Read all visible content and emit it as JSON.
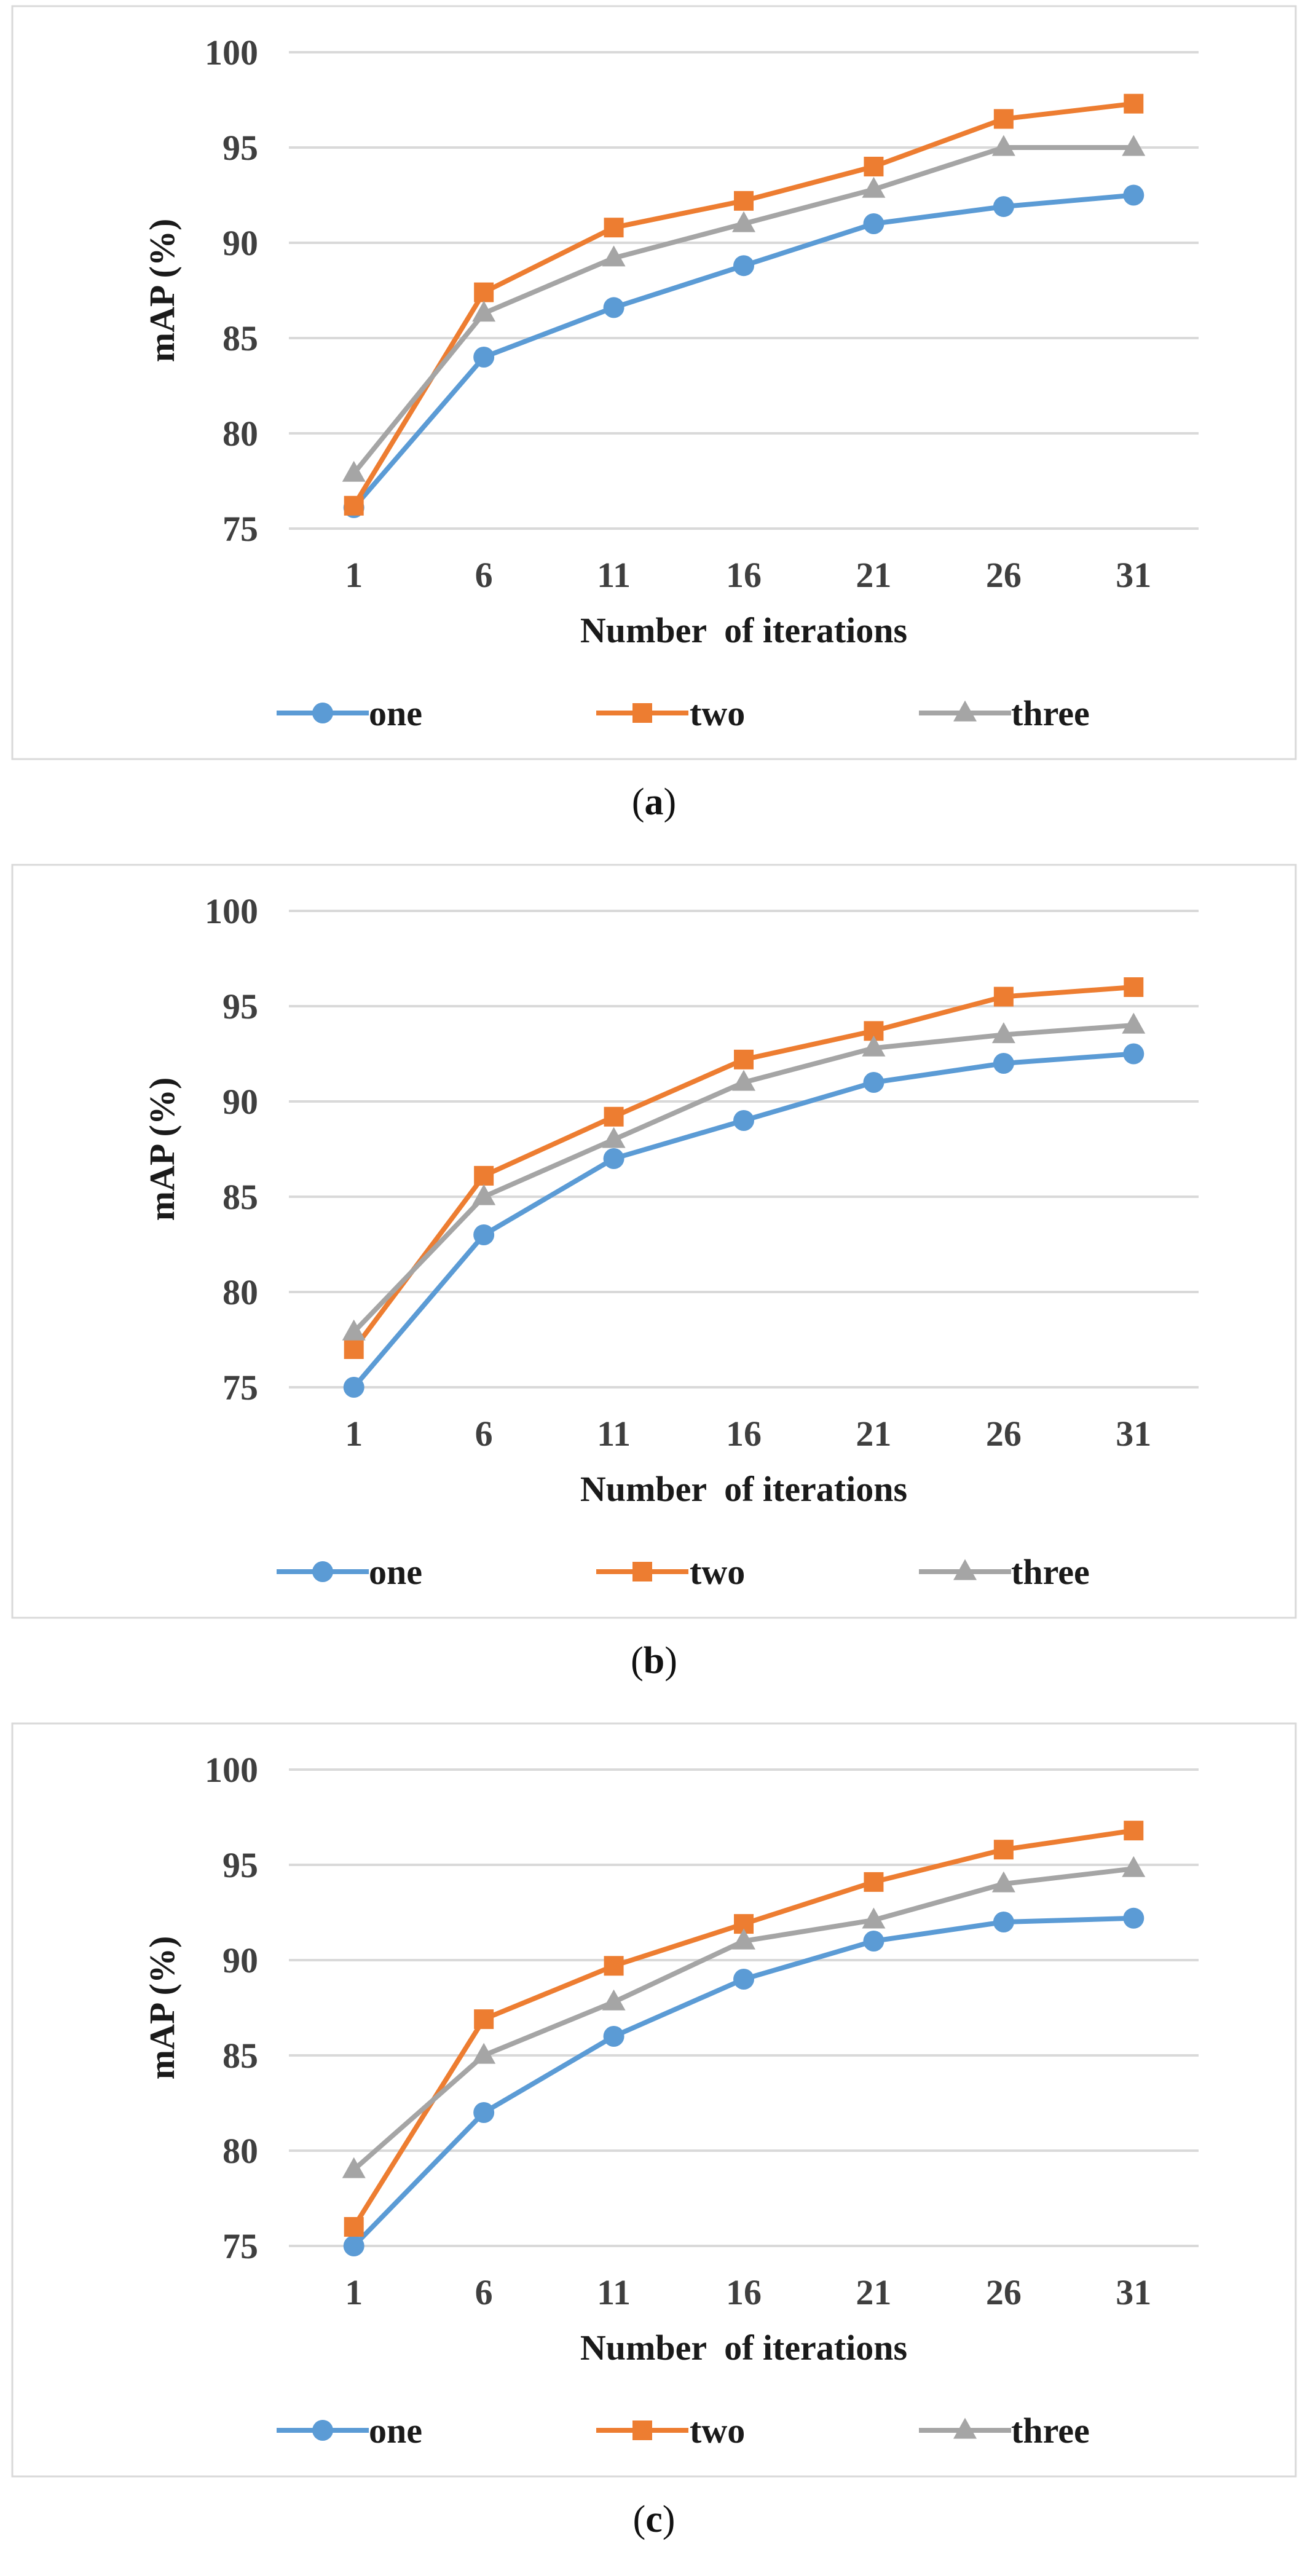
{
  "colors": {
    "one": "#5b9bd5",
    "two": "#ed7d31",
    "three": "#a5a5a5"
  },
  "chart_data": [
    {
      "type": "line",
      "caption_letter": "a",
      "xlabel": "Number  of iterations",
      "ylabel": "mAP (%)",
      "categories": [
        "1",
        "6",
        "11",
        "16",
        "21",
        "26",
        "31"
      ],
      "yticks": [
        "75",
        "80",
        "85",
        "90",
        "95",
        "100"
      ],
      "ylim": [
        75,
        100
      ],
      "grid": true,
      "legend": "bottom",
      "series": [
        {
          "name": "one",
          "marker": "circle",
          "values": [
            76.1,
            84.0,
            86.6,
            88.8,
            91.0,
            91.9,
            92.5
          ]
        },
        {
          "name": "two",
          "marker": "square",
          "values": [
            76.2,
            87.4,
            90.8,
            92.2,
            94.0,
            96.5,
            97.3
          ]
        },
        {
          "name": "three",
          "marker": "triangle",
          "values": [
            77.9,
            86.3,
            89.2,
            91.0,
            92.8,
            95.0,
            95.0
          ]
        }
      ]
    },
    {
      "type": "line",
      "caption_letter": "b",
      "xlabel": "Number  of iterations",
      "ylabel": "mAP (%)",
      "categories": [
        "1",
        "6",
        "11",
        "16",
        "21",
        "26",
        "31"
      ],
      "yticks": [
        "75",
        "80",
        "85",
        "90",
        "95",
        "100"
      ],
      "ylim": [
        75,
        100
      ],
      "grid": true,
      "legend": "bottom",
      "series": [
        {
          "name": "one",
          "marker": "circle",
          "values": [
            75.0,
            83.0,
            87.0,
            89.0,
            91.0,
            92.0,
            92.5
          ]
        },
        {
          "name": "two",
          "marker": "square",
          "values": [
            77.0,
            86.1,
            89.2,
            92.2,
            93.7,
            95.5,
            96.0
          ]
        },
        {
          "name": "three",
          "marker": "triangle",
          "values": [
            77.9,
            85.0,
            88.0,
            91.0,
            92.8,
            93.5,
            94.0
          ]
        }
      ]
    },
    {
      "type": "line",
      "caption_letter": "c",
      "xlabel": "Number  of iterations",
      "ylabel": "mAP (%)",
      "categories": [
        "1",
        "6",
        "11",
        "16",
        "21",
        "26",
        "31"
      ],
      "yticks": [
        "75",
        "80",
        "85",
        "90",
        "95",
        "100"
      ],
      "ylim": [
        75,
        100
      ],
      "grid": true,
      "legend": "bottom",
      "series": [
        {
          "name": "one",
          "marker": "circle",
          "values": [
            75.0,
            82.0,
            86.0,
            89.0,
            91.0,
            92.0,
            92.2
          ]
        },
        {
          "name": "two",
          "marker": "square",
          "values": [
            76.0,
            86.9,
            89.7,
            91.9,
            94.1,
            95.8,
            96.8
          ]
        },
        {
          "name": "three",
          "marker": "triangle",
          "values": [
            79.0,
            85.0,
            87.8,
            91.0,
            92.1,
            94.0,
            94.8
          ]
        }
      ]
    }
  ]
}
